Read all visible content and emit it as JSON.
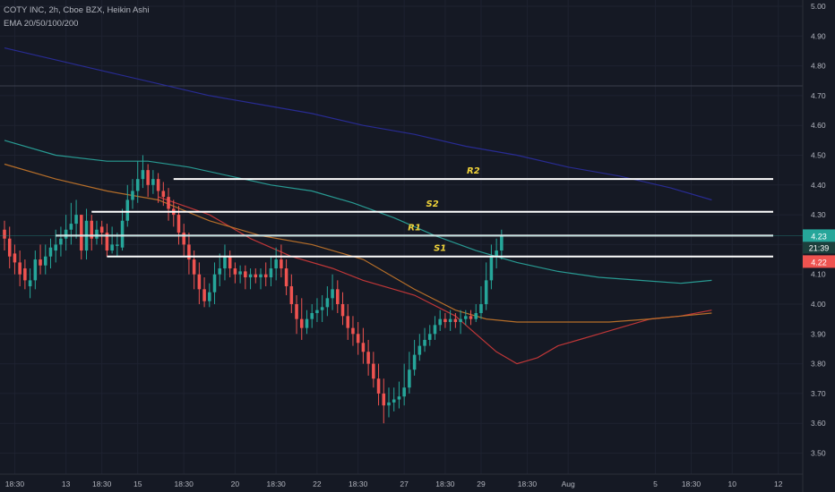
{
  "header": {
    "line1": "COTY INC, 2h, Cboe BZX, Heikin Ashi",
    "line2": "EMA 20/50/100/200"
  },
  "colors": {
    "background": "#151924",
    "bull": "#26a69a",
    "bear": "#ef5350",
    "grid": "#1e2230",
    "axis_text": "#b2b5be",
    "level_label": "#f0d33a",
    "ema20": "#d23a3a",
    "ema50": "#c8782a",
    "ema100": "#2aa89e",
    "ema200": "#2a2e9e",
    "price_badge": "#26a69a",
    "low_badge": "#ef5350"
  },
  "chart_data": {
    "type": "candlestick",
    "title": "COTY INC, 2h, Cboe BZX, Heikin Ashi",
    "ylim": [
      3.45,
      5.0
    ],
    "grid": true,
    "y_ticks": [
      "3.50",
      "3.60",
      "3.70",
      "3.80",
      "3.90",
      "4.00",
      "4.10",
      "4.20",
      "4.30",
      "4.40",
      "4.50",
      "4.60",
      "4.70",
      "4.80",
      "4.90",
      "5.00"
    ],
    "x_ticks": [
      {
        "label": "18:30",
        "bar": 2
      },
      {
        "label": "13",
        "bar": 12
      },
      {
        "label": "18:30",
        "bar": 19
      },
      {
        "label": "15",
        "bar": 26
      },
      {
        "label": "18:30",
        "bar": 35
      },
      {
        "label": "20",
        "bar": 45
      },
      {
        "label": "18:30",
        "bar": 53
      },
      {
        "label": "22",
        "bar": 61
      },
      {
        "label": "18:30",
        "bar": 69
      },
      {
        "label": "27",
        "bar": 78
      },
      {
        "label": "18:30",
        "bar": 86
      },
      {
        "label": "29",
        "bar": 93
      },
      {
        "label": "18:30",
        "bar": 102
      },
      {
        "label": "Aug",
        "bar": 110
      },
      {
        "label": "5",
        "bar": 127
      },
      {
        "label": "18:30",
        "bar": 134
      },
      {
        "label": "10",
        "bar": 142
      },
      {
        "label": "12",
        "bar": 151
      }
    ],
    "candles": [
      [
        4.25,
        4.22,
        4.28,
        4.18
      ],
      [
        4.22,
        4.16,
        4.26,
        4.12
      ],
      [
        4.17,
        4.14,
        4.2,
        4.1
      ],
      [
        4.14,
        4.1,
        4.18,
        4.06
      ],
      [
        4.12,
        4.08,
        4.15,
        4.05
      ],
      [
        4.06,
        4.08,
        4.12,
        4.02
      ],
      [
        4.08,
        4.15,
        4.18,
        4.05
      ],
      [
        4.15,
        4.13,
        4.2,
        4.1
      ],
      [
        4.13,
        4.16,
        4.2,
        4.1
      ],
      [
        4.16,
        4.19,
        4.22,
        4.12
      ],
      [
        4.18,
        4.2,
        4.25,
        4.14
      ],
      [
        4.2,
        4.22,
        4.26,
        4.16
      ],
      [
        4.22,
        4.25,
        4.3,
        4.18
      ],
      [
        4.25,
        4.27,
        4.34,
        4.2
      ],
      [
        4.27,
        4.3,
        4.35,
        4.22
      ],
      [
        4.3,
        4.18,
        4.3,
        4.15
      ],
      [
        4.18,
        4.28,
        4.32,
        4.15
      ],
      [
        4.28,
        4.22,
        4.3,
        4.18
      ],
      [
        4.22,
        4.25,
        4.28,
        4.2
      ],
      [
        4.26,
        4.24,
        4.28,
        4.2
      ],
      [
        4.24,
        4.18,
        4.27,
        4.16
      ],
      [
        4.18,
        4.2,
        4.26,
        4.17
      ],
      [
        4.2,
        4.2,
        4.24,
        4.16
      ],
      [
        4.19,
        4.28,
        4.32,
        4.18
      ],
      [
        4.28,
        4.35,
        4.4,
        4.26
      ],
      [
        4.35,
        4.38,
        4.42,
        4.32
      ],
      [
        4.38,
        4.42,
        4.48,
        4.34
      ],
      [
        4.42,
        4.45,
        4.5,
        4.39
      ],
      [
        4.45,
        4.4,
        4.47,
        4.36
      ],
      [
        4.4,
        4.42,
        4.45,
        4.37
      ],
      [
        4.42,
        4.38,
        4.44,
        4.34
      ],
      [
        4.38,
        4.36,
        4.41,
        4.33
      ],
      [
        4.36,
        4.32,
        4.39,
        4.28
      ],
      [
        4.32,
        4.3,
        4.35,
        4.26
      ],
      [
        4.3,
        4.24,
        4.33,
        4.2
      ],
      [
        4.24,
        4.2,
        4.27,
        4.16
      ],
      [
        4.2,
        4.15,
        4.24,
        4.1
      ],
      [
        4.15,
        4.1,
        4.18,
        4.05
      ],
      [
        4.1,
        4.05,
        4.14,
        4.0
      ],
      [
        4.05,
        4.01,
        4.09,
        3.99
      ],
      [
        4.01,
        4.04,
        4.07,
        3.99
      ],
      [
        4.04,
        4.1,
        4.14,
        4.0
      ],
      [
        4.1,
        4.12,
        4.17,
        4.06
      ],
      [
        4.12,
        4.16,
        4.2,
        4.08
      ],
      [
        4.16,
        4.12,
        4.18,
        4.09
      ],
      [
        4.12,
        4.1,
        4.14,
        4.07
      ],
      [
        4.1,
        4.11,
        4.13,
        4.07
      ],
      [
        4.11,
        4.09,
        4.13,
        4.05
      ],
      [
        4.09,
        4.1,
        4.12,
        4.05
      ],
      [
        4.1,
        4.09,
        4.12,
        4.07
      ],
      [
        4.09,
        4.1,
        4.12,
        4.05
      ],
      [
        4.1,
        4.09,
        4.14,
        4.06
      ],
      [
        4.09,
        4.12,
        4.16,
        4.06
      ],
      [
        4.12,
        4.15,
        4.19,
        4.08
      ],
      [
        4.15,
        4.12,
        4.2,
        4.09
      ],
      [
        4.12,
        4.06,
        4.15,
        4.03
      ],
      [
        4.06,
        4.0,
        4.1,
        3.97
      ],
      [
        4.0,
        3.95,
        4.03,
        3.9
      ],
      [
        3.95,
        3.92,
        4.02,
        3.88
      ],
      [
        3.92,
        3.95,
        3.98,
        3.9
      ],
      [
        3.95,
        3.97,
        4.0,
        3.92
      ],
      [
        3.97,
        3.98,
        4.02,
        3.94
      ],
      [
        3.98,
        3.99,
        4.03,
        3.94
      ],
      [
        3.99,
        4.02,
        4.06,
        3.96
      ],
      [
        4.02,
        4.05,
        4.1,
        3.98
      ],
      [
        4.05,
        4.0,
        4.08,
        3.97
      ],
      [
        4.0,
        3.96,
        4.04,
        3.93
      ],
      [
        3.96,
        3.92,
        4.0,
        3.88
      ],
      [
        3.92,
        3.9,
        3.96,
        3.86
      ],
      [
        3.9,
        3.87,
        3.94,
        3.83
      ],
      [
        3.87,
        3.84,
        3.92,
        3.8
      ],
      [
        3.84,
        3.8,
        3.88,
        3.76
      ],
      [
        3.8,
        3.75,
        3.84,
        3.72
      ],
      [
        3.75,
        3.7,
        3.8,
        3.66
      ],
      [
        3.7,
        3.66,
        3.75,
        3.6
      ],
      [
        3.66,
        3.67,
        3.72,
        3.62
      ],
      [
        3.67,
        3.68,
        3.72,
        3.64
      ],
      [
        3.68,
        3.69,
        3.74,
        3.65
      ],
      [
        3.69,
        3.72,
        3.8,
        3.66
      ],
      [
        3.72,
        3.78,
        3.84,
        3.7
      ],
      [
        3.78,
        3.83,
        3.88,
        3.76
      ],
      [
        3.83,
        3.86,
        3.9,
        3.81
      ],
      [
        3.86,
        3.88,
        3.92,
        3.84
      ],
      [
        3.88,
        3.9,
        3.93,
        3.86
      ],
      [
        3.9,
        3.93,
        3.96,
        3.88
      ],
      [
        3.93,
        3.95,
        3.98,
        3.91
      ],
      [
        3.95,
        3.94,
        3.97,
        3.92
      ],
      [
        3.94,
        3.95,
        3.98,
        3.91
      ],
      [
        3.95,
        3.94,
        3.97,
        3.92
      ],
      [
        3.94,
        3.95,
        3.98,
        3.9
      ],
      [
        3.95,
        3.96,
        3.98,
        3.93
      ],
      [
        3.96,
        3.95,
        3.98,
        3.93
      ],
      [
        3.95,
        3.97,
        4.0,
        3.94
      ],
      [
        3.97,
        4.0,
        4.06,
        3.95
      ],
      [
        4.0,
        4.08,
        4.14,
        3.98
      ],
      [
        4.08,
        4.16,
        4.2,
        4.05
      ],
      [
        4.16,
        4.18,
        4.22,
        4.12
      ],
      [
        4.18,
        4.23,
        4.25,
        4.15
      ]
    ],
    "series": [
      {
        "name": "EMA 20",
        "color": "#d23a3a",
        "points": [
          [
            30,
            4.36
          ],
          [
            40,
            4.3
          ],
          [
            48,
            4.22
          ],
          [
            56,
            4.16
          ],
          [
            64,
            4.12
          ],
          [
            70,
            4.08
          ],
          [
            80,
            4.03
          ],
          [
            88,
            3.96
          ],
          [
            92,
            3.9
          ],
          [
            96,
            3.84
          ],
          [
            100,
            3.8
          ],
          [
            104,
            3.82
          ],
          [
            108,
            3.86
          ],
          [
            112,
            3.88
          ],
          [
            116,
            3.9
          ],
          [
            120,
            3.92
          ],
          [
            126,
            3.95
          ],
          [
            132,
            3.96
          ],
          [
            138,
            3.98
          ]
        ]
      },
      {
        "name": "EMA 50",
        "color": "#c8782a",
        "points": [
          [
            0,
            4.47
          ],
          [
            10,
            4.42
          ],
          [
            20,
            4.38
          ],
          [
            30,
            4.35
          ],
          [
            40,
            4.28
          ],
          [
            50,
            4.23
          ],
          [
            60,
            4.2
          ],
          [
            70,
            4.15
          ],
          [
            80,
            4.05
          ],
          [
            88,
            3.98
          ],
          [
            94,
            3.95
          ],
          [
            100,
            3.94
          ],
          [
            106,
            3.94
          ],
          [
            112,
            3.94
          ],
          [
            118,
            3.94
          ],
          [
            126,
            3.95
          ],
          [
            132,
            3.96
          ],
          [
            138,
            3.97
          ]
        ]
      },
      {
        "name": "EMA 100",
        "color": "#2aa89e",
        "points": [
          [
            0,
            4.55
          ],
          [
            10,
            4.5
          ],
          [
            20,
            4.48
          ],
          [
            28,
            4.48
          ],
          [
            36,
            4.46
          ],
          [
            44,
            4.43
          ],
          [
            52,
            4.4
          ],
          [
            60,
            4.38
          ],
          [
            68,
            4.34
          ],
          [
            76,
            4.29
          ],
          [
            84,
            4.23
          ],
          [
            92,
            4.18
          ],
          [
            100,
            4.14
          ],
          [
            108,
            4.11
          ],
          [
            116,
            4.09
          ],
          [
            124,
            4.08
          ],
          [
            132,
            4.07
          ],
          [
            138,
            4.08
          ]
        ]
      },
      {
        "name": "EMA 200",
        "color": "#2a2e9e",
        "points": [
          [
            0,
            4.86
          ],
          [
            10,
            4.82
          ],
          [
            20,
            4.78
          ],
          [
            30,
            4.74
          ],
          [
            40,
            4.7
          ],
          [
            50,
            4.67
          ],
          [
            60,
            4.64
          ],
          [
            70,
            4.6
          ],
          [
            80,
            4.57
          ],
          [
            90,
            4.53
          ],
          [
            100,
            4.5
          ],
          [
            110,
            4.46
          ],
          [
            120,
            4.43
          ],
          [
            130,
            4.39
          ],
          [
            138,
            4.35
          ]
        ]
      }
    ],
    "levels": [
      {
        "label": "R2",
        "price": 4.42,
        "bar_start": 33,
        "bar_end": 150
      },
      {
        "label": "S2",
        "price": 4.31,
        "bar_start": 17,
        "bar_end": 150
      },
      {
        "label": "R1",
        "price": 4.23,
        "bar_start": 10,
        "bar_end": 150
      },
      {
        "label": "S1",
        "price": 4.16,
        "bar_start": 20,
        "bar_end": 150
      }
    ],
    "last_price": "4.23",
    "countdown": "21:39",
    "price_low_label": "4.22"
  }
}
